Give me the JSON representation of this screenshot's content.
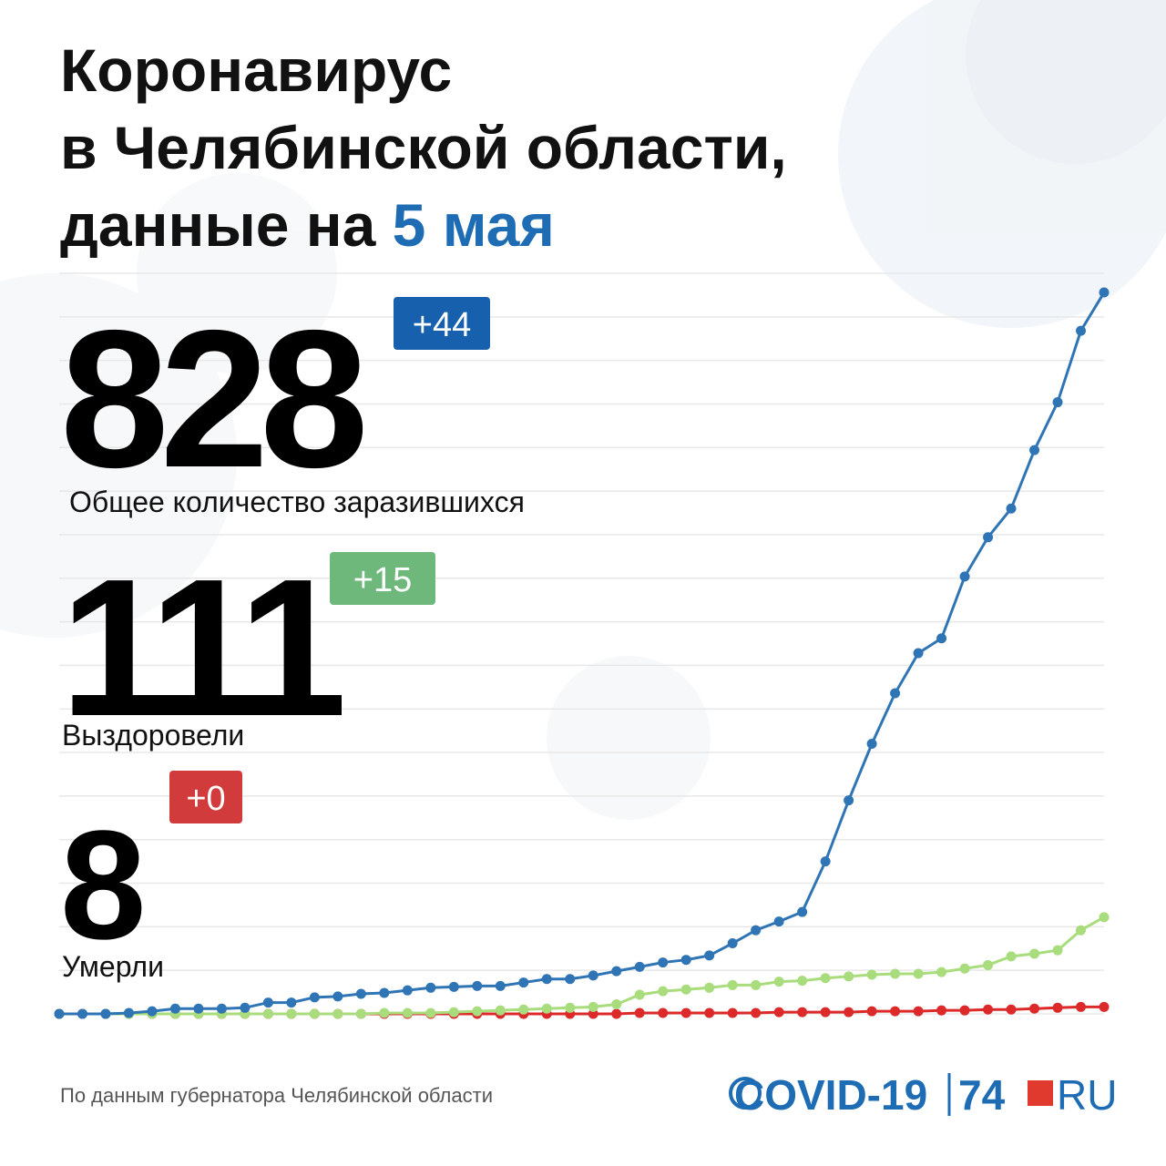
{
  "title": [
    "Коронавирус",
    "в Челябинской области,",
    "данные на ",
    "5 мая"
  ],
  "stats": [
    {
      "value": "828",
      "change": "+44",
      "caption": "Общее количество заразившихся",
      "color": "#1760ae"
    },
    {
      "value": "111",
      "change": "+15",
      "caption": "Выздоровели",
      "color": "#6db87a"
    },
    {
      "value": "8",
      "change": "+0",
      "caption": "Умерли",
      "color": "#d23b3b"
    }
  ],
  "chart_data": {
    "type": "line",
    "ylim": [
      0,
      850
    ],
    "yticks": [
      0,
      50,
      100,
      150,
      200,
      250,
      300,
      350,
      400,
      450,
      500,
      550,
      600,
      650,
      700,
      750,
      800,
      850
    ],
    "grid": true,
    "series": [
      {
        "name": "Общее количество заразившихся",
        "color": "#2f74b5",
        "values": [
          0,
          0,
          0,
          1,
          3,
          6,
          6,
          6,
          7,
          13,
          13,
          19,
          20,
          23,
          24,
          27,
          30,
          31,
          32,
          32,
          36,
          40,
          40,
          44,
          49,
          54,
          59,
          62,
          67,
          81,
          96,
          106,
          117,
          175,
          245,
          310,
          368,
          414,
          431,
          502,
          547,
          580,
          647,
          702,
          784,
          828
        ]
      },
      {
        "name": "Выздоровели",
        "color": "#a8dc7c",
        "values": [
          0,
          0,
          0,
          0,
          0,
          0,
          0,
          0,
          0,
          0,
          0,
          0,
          0,
          0,
          1,
          1,
          1,
          2,
          3,
          4,
          5,
          6,
          7,
          8,
          11,
          22,
          26,
          28,
          30,
          33,
          33,
          37,
          38,
          41,
          43,
          45,
          46,
          46,
          48,
          52,
          56,
          66,
          69,
          73,
          96,
          111
        ]
      },
      {
        "name": "Умерли",
        "color": "#dc2a2a",
        "values": [
          0,
          0,
          0,
          0,
          0,
          0,
          0,
          0,
          0,
          0,
          0,
          0,
          0,
          0,
          0,
          0,
          0,
          0,
          0,
          0,
          0,
          0,
          0,
          0,
          0,
          1,
          1,
          1,
          1,
          1,
          1,
          2,
          2,
          2,
          2,
          3,
          3,
          3,
          4,
          4,
          5,
          5,
          6,
          7,
          8,
          8
        ]
      }
    ]
  },
  "footer": {
    "source": "По данным губернатора Челябинской области",
    "logo_covid": "COVID-19",
    "logo_74": "74",
    "logo_ru": "RU"
  }
}
